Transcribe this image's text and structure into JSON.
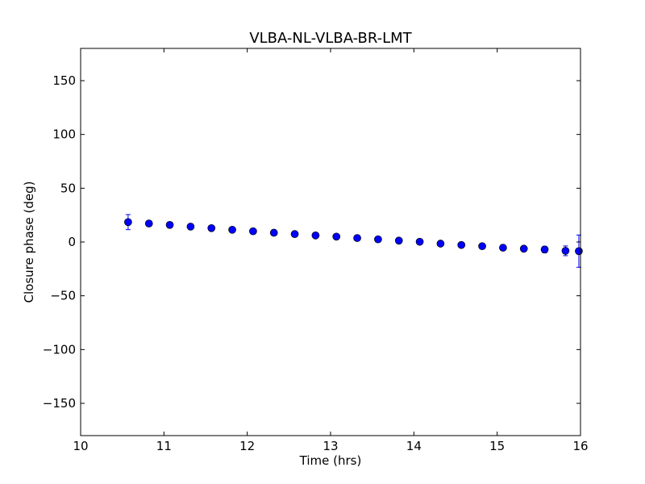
{
  "chart_data": {
    "type": "scatter",
    "title": "VLBA-NL-VLBA-BR-LMT",
    "xlabel": "Time (hrs)",
    "ylabel": "Closure phase (deg)",
    "xlim": [
      10,
      16
    ],
    "ylim": [
      -180,
      180
    ],
    "x_ticks": [
      10,
      11,
      12,
      13,
      14,
      15,
      16
    ],
    "x_tick_labels": [
      "10",
      "11",
      "12",
      "13",
      "14",
      "15",
      "16"
    ],
    "y_ticks": [
      -150,
      -100,
      -50,
      0,
      50,
      100,
      150
    ],
    "y_tick_labels": [
      "−150",
      "−100",
      "−50",
      "0",
      "50",
      "100",
      "150"
    ],
    "grid": false,
    "marker": "circle",
    "error_bars": true,
    "colors": {
      "marker_fill": "#0000ff",
      "marker_edge": "#000000",
      "error_bar": "#0000ff",
      "axes": "#000000",
      "background": "#ffffff"
    },
    "series": [
      {
        "x": [
          10.57,
          10.82,
          11.07,
          11.32,
          11.57,
          11.82,
          12.07,
          12.32,
          12.57,
          12.82,
          13.07,
          13.32,
          13.57,
          13.82,
          14.07,
          14.32,
          14.57,
          14.82,
          15.07,
          15.32,
          15.57,
          15.82,
          15.98
        ],
        "y": [
          18.5,
          17.2,
          15.9,
          14.3,
          12.9,
          11.4,
          10.0,
          8.6,
          7.4,
          6.1,
          5.0,
          3.7,
          2.5,
          1.3,
          0.2,
          -1.5,
          -2.8,
          -3.9,
          -5.3,
          -6.2,
          -7.0,
          -8.2,
          -8.5
        ],
        "err": [
          7.0,
          2.5,
          2.5,
          2.0,
          2.0,
          2.0,
          2.0,
          2.0,
          2.0,
          2.0,
          2.0,
          2.0,
          2.0,
          2.0,
          2.0,
          2.0,
          2.0,
          2.0,
          2.0,
          2.0,
          3.0,
          4.5,
          15.0
        ]
      }
    ]
  }
}
